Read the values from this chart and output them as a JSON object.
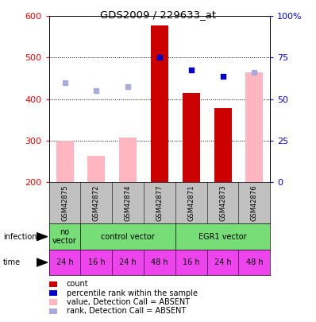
{
  "title": "GDS2009 / 229633_at",
  "samples": [
    "GSM42875",
    "GSM42872",
    "GSM42874",
    "GSM42877",
    "GSM42871",
    "GSM42873",
    "GSM42876"
  ],
  "bar_values_absent": [
    300,
    262,
    308,
    null,
    null,
    null,
    465
  ],
  "bar_values_present": [
    null,
    null,
    null,
    578,
    415,
    378,
    null
  ],
  "dot_rank_present": [
    null,
    null,
    null,
    500,
    470,
    455,
    null
  ],
  "dot_rank_absent": [
    440,
    420,
    430,
    null,
    null,
    null,
    465
  ],
  "ylim": [
    200,
    600
  ],
  "yticks": [
    200,
    300,
    400,
    500,
    600
  ],
  "y2_labels": [
    "0",
    "25",
    "50",
    "75",
    "100%"
  ],
  "time_labels": [
    "24 h",
    "16 h",
    "24 h",
    "48 h",
    "16 h",
    "24 h",
    "48 h"
  ],
  "bar_color_dark_red": "#CC0000",
  "bar_color_light_red": "#FFB6C1",
  "dot_color_dark_blue": "#0000CC",
  "dot_color_light_blue": "#AAAADD",
  "sample_bg": "#C0C0C0",
  "infection_green": "#77DD77",
  "time_magenta": "#EE44EE",
  "no_vector_bg": "#CCFFCC"
}
